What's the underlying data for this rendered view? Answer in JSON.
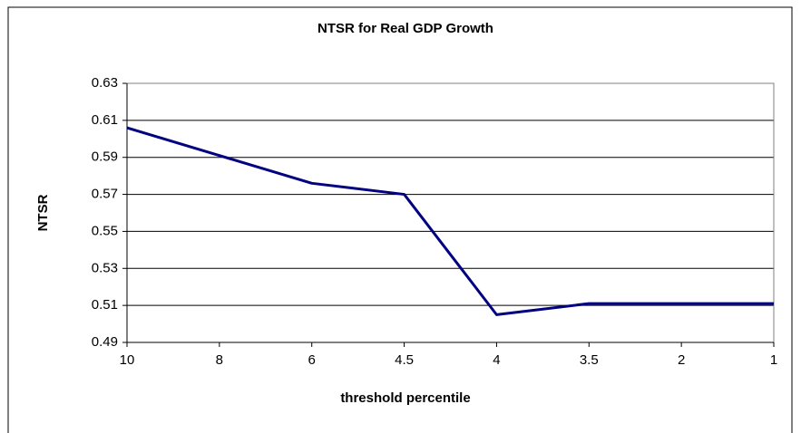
{
  "chart_data": {
    "type": "line",
    "title": "NTSR for Real GDP Growth",
    "x_label": "threshold percentile",
    "y_label": "NTSR",
    "categories": [
      "10",
      "8",
      "6",
      "4.5",
      "4",
      "3.5",
      "2",
      "1"
    ],
    "series": [
      {
        "name": "NTSR",
        "color": "#000080",
        "values": [
          0.606,
          0.591,
          0.576,
          0.57,
          0.505,
          0.511,
          0.511,
          0.511
        ]
      }
    ],
    "ylim": [
      0.49,
      0.63
    ],
    "yticks": [
      0.49,
      0.51,
      0.53,
      0.55,
      0.57,
      0.59,
      0.61,
      0.63
    ],
    "grid": true
  }
}
